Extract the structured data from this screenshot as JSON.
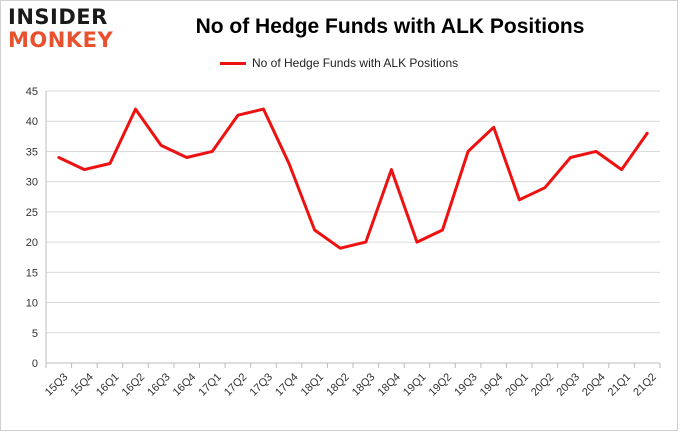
{
  "logo": {
    "line1": "INSIDER",
    "line2": "MONKEY"
  },
  "chart_data": {
    "type": "line",
    "title": "No of Hedge Funds with ALK Positions",
    "xlabel": "",
    "ylabel": "",
    "categories": [
      "15Q3",
      "15Q4",
      "16Q1",
      "16Q2",
      "16Q3",
      "16Q4",
      "17Q1",
      "17Q2",
      "17Q3",
      "17Q4",
      "18Q1",
      "18Q2",
      "18Q3",
      "18Q4",
      "19Q1",
      "19Q2",
      "19Q3",
      "19Q4",
      "20Q1",
      "20Q2",
      "20Q3",
      "20Q4",
      "21Q1",
      "21Q2"
    ],
    "series": [
      {
        "name": "No of Hedge Funds with ALK Positions",
        "color": "#ee1111",
        "values": [
          34,
          32,
          33,
          42,
          36,
          34,
          35,
          41,
          42,
          33,
          22,
          19,
          20,
          32,
          20,
          22,
          35,
          39,
          27,
          29,
          34,
          35,
          32,
          38
        ]
      }
    ],
    "ylim": [
      0,
      45
    ],
    "yticks": [
      0,
      5,
      10,
      15,
      20,
      25,
      30,
      35,
      40,
      45
    ],
    "grid": true,
    "legend": "top-center"
  }
}
